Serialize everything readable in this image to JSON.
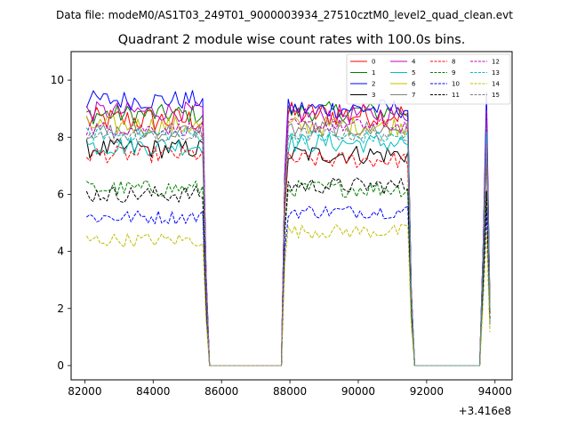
{
  "chart_data": {
    "type": "line",
    "suptitle": "Data file: modeM0/AS1T03_249T01_9000003934_27510cztM0_level2_quad_clean.evt",
    "title": "Quadrant 2 module wise count rates with 100.0s bins.",
    "xlabel": "",
    "ylabel": "",
    "x_offset_label": "+3.416e8",
    "xlim": [
      81600,
      94500
    ],
    "ylim": [
      -0.5,
      11.0
    ],
    "xticks": [
      82000,
      84000,
      86000,
      88000,
      90000,
      92000,
      94000
    ],
    "xtick_labels": [
      "82000",
      "84000",
      "86000",
      "88000",
      "90000",
      "92000",
      "94000"
    ],
    "yticks": [
      0,
      2,
      4,
      6,
      8,
      10
    ],
    "ytick_labels": [
      "0",
      "2",
      "4",
      "6",
      "8",
      "10"
    ],
    "grid": false,
    "legend_position": "top-right",
    "legend_columns": 4,
    "segments": [
      {
        "start": 82050,
        "plateau_end": 85450,
        "fall_end": 85650
      },
      {
        "rise_start": 87750,
        "start": 87950,
        "plateau_end": 91450,
        "fall_end": 91650
      },
      {
        "rise_start": 93550,
        "peak": 93750,
        "end": 93850
      }
    ],
    "zero_gaps": [
      [
        85650,
        87750
      ],
      [
        91650,
        93550
      ]
    ],
    "series": [
      {
        "name": "0",
        "color": "#ff0000",
        "style": "solid",
        "level_a": 8.6,
        "level_b": 8.8,
        "noise": 0.45
      },
      {
        "name": "1",
        "color": "#008000",
        "style": "solid",
        "level_a": 8.8,
        "level_b": 8.9,
        "noise": 0.35
      },
      {
        "name": "2",
        "color": "#0000ff",
        "style": "solid",
        "level_a": 9.3,
        "level_b": 9.0,
        "noise": 0.35
      },
      {
        "name": "3",
        "color": "#000000",
        "style": "solid",
        "level_a": 7.6,
        "level_b": 7.4,
        "noise": 0.35
      },
      {
        "name": "4",
        "color": "#bf00bf",
        "style": "solid",
        "level_a": 8.9,
        "level_b": 8.8,
        "noise": 0.35
      },
      {
        "name": "5",
        "color": "#00bfbf",
        "style": "solid",
        "level_a": 7.7,
        "level_b": 7.8,
        "noise": 0.35
      },
      {
        "name": "6",
        "color": "#bfbf00",
        "style": "solid",
        "level_a": 8.4,
        "level_b": 8.4,
        "noise": 0.35
      },
      {
        "name": "7",
        "color": "#808080",
        "style": "solid",
        "level_a": 8.2,
        "level_b": 8.3,
        "noise": 0.3
      },
      {
        "name": "8",
        "color": "#ff0000",
        "style": "dashed",
        "level_a": 7.4,
        "level_b": 7.2,
        "noise": 0.3
      },
      {
        "name": "9",
        "color": "#008000",
        "style": "dashed",
        "level_a": 6.2,
        "level_b": 6.2,
        "noise": 0.3
      },
      {
        "name": "10",
        "color": "#0000ff",
        "style": "dashed",
        "level_a": 5.2,
        "level_b": 5.4,
        "noise": 0.25
      },
      {
        "name": "11",
        "color": "#000000",
        "style": "dashed",
        "level_a": 6.0,
        "level_b": 6.3,
        "noise": 0.3
      },
      {
        "name": "12",
        "color": "#bf00bf",
        "style": "dashed",
        "level_a": 8.3,
        "level_b": 8.4,
        "noise": 0.25
      },
      {
        "name": "13",
        "color": "#00bfbf",
        "style": "dashed",
        "level_a": 8.1,
        "level_b": 8.0,
        "noise": 0.25
      },
      {
        "name": "14",
        "color": "#bfbf00",
        "style": "dashed",
        "level_a": 4.4,
        "level_b": 4.7,
        "noise": 0.25
      },
      {
        "name": "15",
        "color": "#808080",
        "style": "dashed",
        "level_a": 8.0,
        "level_b": 8.1,
        "noise": 0.25
      }
    ]
  }
}
